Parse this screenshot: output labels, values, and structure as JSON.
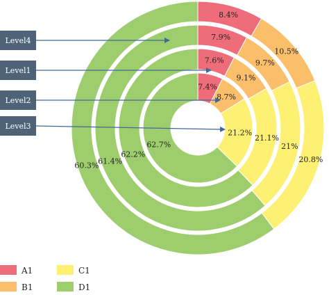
{
  "chart_data": {
    "type": "pie",
    "variant": "concentric-donut",
    "categories": [
      "A1",
      "B1",
      "C1",
      "D1"
    ],
    "colors": {
      "A1": "#ef6d7a",
      "B1": "#fbbe6a",
      "C1": "#fdf072",
      "D1": "#9dcd6c"
    },
    "series": [
      {
        "name": "Level4",
        "values": [
          8.4,
          10.5,
          20.8,
          60.3
        ],
        "labels": [
          "8.4%",
          "10.5%",
          "20.8%",
          "60.3%"
        ]
      },
      {
        "name": "Level1",
        "values": [
          7.9,
          9.7,
          21,
          61.4
        ],
        "labels": [
          "7.9%",
          "9.7%",
          "21%",
          "61.4%"
        ]
      },
      {
        "name": "Level2",
        "values": [
          7.6,
          9.1,
          21.1,
          62.2
        ],
        "labels": [
          "7.6%",
          "9.1%",
          "21.1%",
          "62.2%"
        ]
      },
      {
        "name": "Level3",
        "values": [
          7.4,
          8.7,
          21.2,
          62.7
        ],
        "labels": [
          "7.4%",
          "8.7%",
          "21.2%",
          "62.7%"
        ]
      }
    ],
    "callouts": [
      "Level4",
      "Level1",
      "Level2",
      "Level3"
    ],
    "legend": {
      "position": "bottom-left",
      "entries": [
        "A1",
        "B1",
        "C1",
        "D1"
      ]
    },
    "callout_color": "#4e6378",
    "arrow_color": "#3f6b9c"
  }
}
